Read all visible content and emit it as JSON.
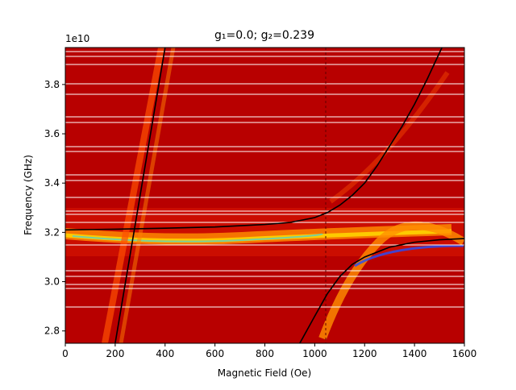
{
  "chart_data": {
    "type": "line",
    "title": "g₁=0.0; g₂=0.239",
    "x_label": "Magnetic Field (Oe)",
    "y_label": "Frequency (GHz)",
    "y_offset_label": "1e10",
    "xlim": [
      0,
      1600
    ],
    "xticks": [
      0,
      200,
      400,
      600,
      800,
      1000,
      1200,
      1400,
      1600
    ],
    "ylim": [
      27500000000,
      39500000000
    ],
    "yticks": [
      {
        "value": 28000000000,
        "label": "2.8"
      },
      {
        "value": 30000000000,
        "label": "3.0"
      },
      {
        "value": 32000000000,
        "label": "3.2"
      },
      {
        "value": 34000000000,
        "label": "3.4"
      },
      {
        "value": 36000000000,
        "label": "3.6"
      },
      {
        "value": 38000000000,
        "label": "3.8"
      }
    ],
    "series": [
      {
        "color": "#000000",
        "x": [
          200,
          400
        ],
        "values": [
          27500000000,
          39500000000
        ]
      },
      {
        "color": "#000000",
        "x": [
          0,
          200,
          400,
          600,
          800,
          900,
          1000,
          1050,
          1100,
          1150,
          1200,
          1250,
          1300,
          1350,
          1400,
          1450,
          1510
        ],
        "values": [
          32100000000,
          32130000000,
          32170000000,
          32220000000,
          32320000000,
          32400000000,
          32600000000,
          32800000000,
          33100000000,
          33500000000,
          34000000000,
          34700000000,
          35500000000,
          36300000000,
          37200000000,
          38200000000,
          39500000000
        ]
      },
      {
        "color": "#000000",
        "x": [
          940,
          1000,
          1050,
          1100,
          1150,
          1200,
          1300,
          1400,
          1500,
          1600
        ],
        "values": [
          27500000000,
          28600000000,
          29500000000,
          30200000000,
          30700000000,
          31000000000,
          31400000000,
          31600000000,
          31700000000,
          31750000000
        ]
      }
    ]
  }
}
